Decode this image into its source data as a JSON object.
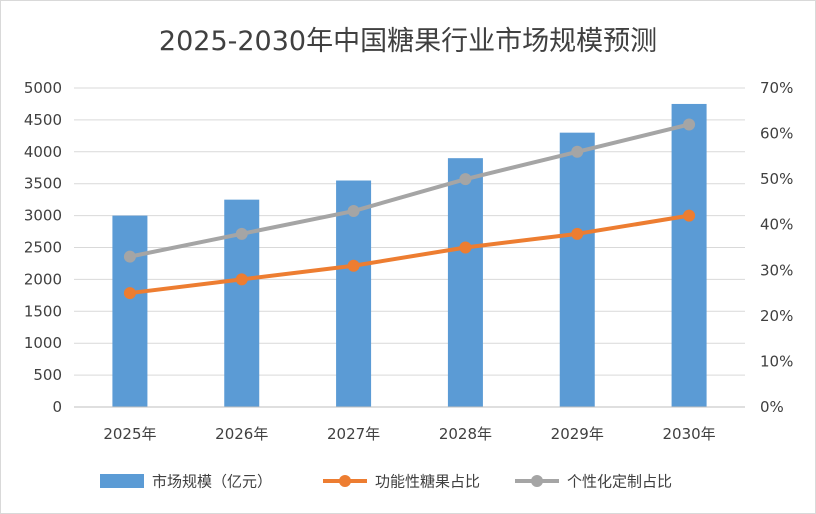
{
  "chart_data": {
    "type": "bar",
    "title": "2025-2030年中国糖果行业市场规模预测",
    "categories": [
      "2025年",
      "2026年",
      "2027年",
      "2028年",
      "2029年",
      "2030年"
    ],
    "series": [
      {
        "name": "市场规模（亿元）",
        "type": "bar",
        "axis": "left",
        "color": "#5b9bd5",
        "values": [
          3000,
          3250,
          3550,
          3900,
          4300,
          4750
        ]
      },
      {
        "name": "功能性糖果占比",
        "type": "line",
        "axis": "right",
        "color": "#ed7d31",
        "values": [
          0.25,
          0.28,
          0.31,
          0.35,
          0.38,
          0.42
        ]
      },
      {
        "name": "个性化定制占比",
        "type": "line",
        "axis": "right",
        "color": "#a5a5a5",
        "values": [
          0.33,
          0.38,
          0.43,
          0.5,
          0.56,
          0.62
        ]
      }
    ],
    "y_left": {
      "ylim": [
        0,
        5000
      ],
      "ticks": [
        "0",
        "500",
        "1000",
        "1500",
        "2000",
        "2500",
        "3000",
        "3500",
        "4000",
        "4500",
        "5000"
      ]
    },
    "y_right": {
      "ylim": [
        0,
        0.7
      ],
      "ticks": [
        "0%",
        "10%",
        "20%",
        "30%",
        "40%",
        "50%",
        "60%",
        "70%"
      ]
    },
    "grid": true,
    "legend_position": "bottom"
  }
}
